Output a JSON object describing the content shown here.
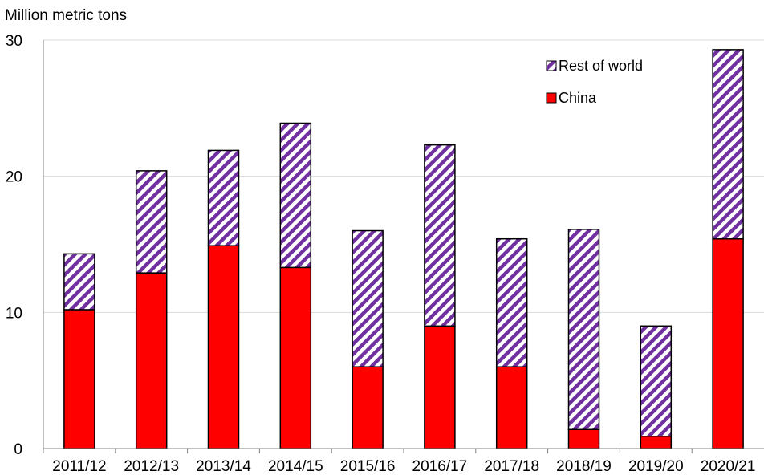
{
  "chart_data": {
    "type": "bar",
    "stacked": true,
    "ylabel": "Million metric tons",
    "ylim": [
      0,
      30
    ],
    "yticks": [
      0,
      10,
      20,
      30
    ],
    "grid": true,
    "legend_position": "top-right",
    "categories": [
      "2011/12",
      "2012/13",
      "2013/14",
      "2014/15",
      "2015/16",
      "2016/17",
      "2017/18",
      "2018/19",
      "2019/20",
      "2020/21"
    ],
    "series": [
      {
        "name": "China",
        "color": "#ff0000",
        "values": [
          10.2,
          12.9,
          14.9,
          13.3,
          6.0,
          9.0,
          6.0,
          1.4,
          0.9,
          15.4
        ]
      },
      {
        "name": "Rest of world",
        "color": "#7030a0",
        "pattern": "diagonal-stripes",
        "values": [
          4.1,
          7.5,
          7.0,
          10.6,
          10.0,
          13.3,
          9.4,
          14.7,
          8.1,
          13.9
        ]
      }
    ]
  }
}
